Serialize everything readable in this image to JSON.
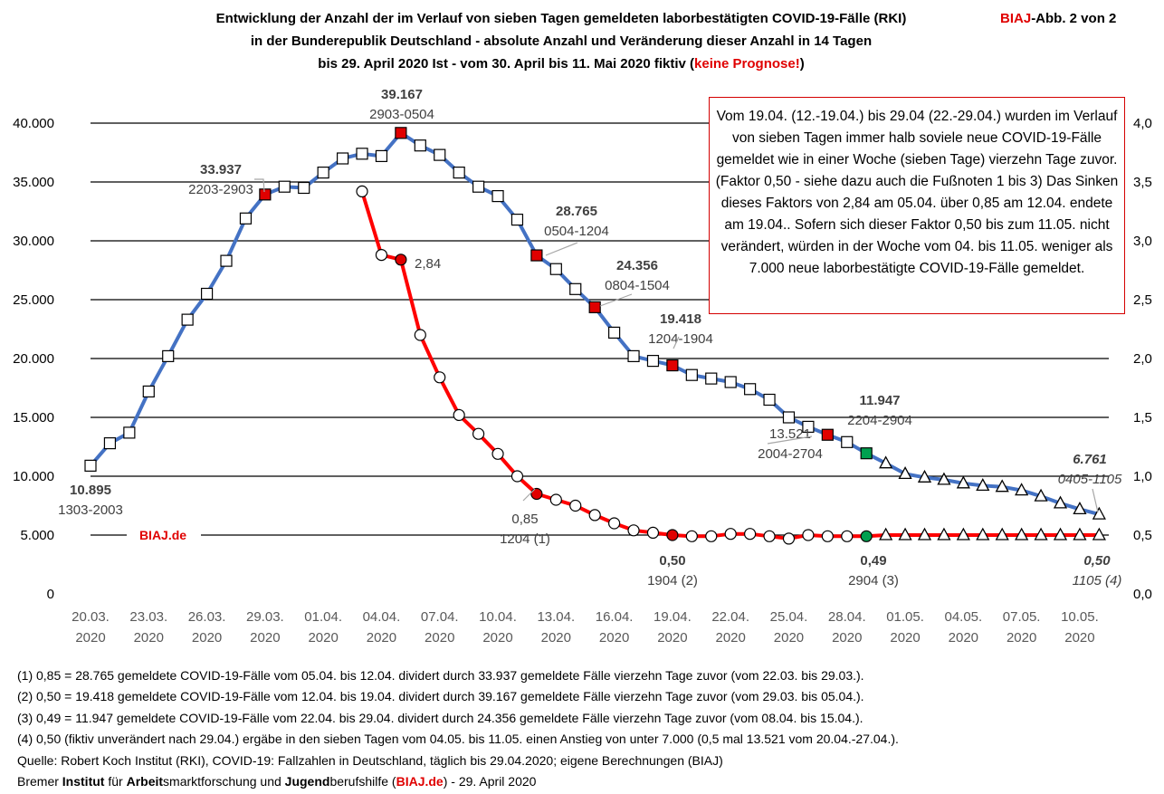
{
  "header": {
    "title_line1": "Entwicklung der Anzahl der im Verlauf von sieben Tagen gemeldeten laborbestätigten COVID-19-Fälle (RKI)",
    "title_line2": "in der Bunderepublik Deutschland - absolute Anzahl und Veränderung dieser Anzahl in 14 Tagen",
    "title_line3_a": "bis 29. April 2020 Ist - vom 30. April bis 11. Mai 2020 fiktiv (",
    "title_line3_red": "keine Prognose!",
    "title_line3_b": ")",
    "badge_red": "BIAJ",
    "badge_rest": "-Abb. 2 von 2"
  },
  "info_box": "Vom 19.04. (12.-19.04.) bis 29.04 (22.-29.04.) wurden im Verlauf von sieben Tagen immer halb soviele neue COVID-19-Fälle gemeldet wie in einer Woche (sieben Tage) vierzehn Tage zuvor. (Faktor 0,50 - siehe dazu auch die Fußnoten 1 bis 3) Das Sinken dieses Faktors von 2,84 am 05.04. über 0,85 am 12.04. endete am 19.04.. Sofern sich dieser Faktor 0,50 bis zum 11.05. nicht verändert, würden in der Woche vom 04. bis 11.05. weniger als 7.000 neue laborbestätigte COVID-19-Fälle gemeldet.",
  "footnotes": [
    "(1) 0,85 = 28.765 gemeldete COVID-19-Fälle vom 05.04. bis 12.04. dividert durch 33.937 gemeldete Fälle vierzehn Tage zuvor (vom 22.03. bis 29.03.).",
    "(2) 0,50 = 19.418 gemeldete COVID-19-Fälle vom 12.04. bis 19.04. dividert durch 39.167 gemeldete Fälle vierzehn Tage zuvor (vom 29.03. bis 05.04.).",
    "(3) 0,49 = 11.947 gemeldete COVID-19-Fälle vom 22.04. bis 29.04. dividert durch 24.356 gemeldete Fälle vierzehn Tage zuvor (vom 08.04. bis 15.04.).",
    "(4) 0,50 (fiktiv unverändert nach 29.04.) ergäbe in den sieben Tagen vom 04.05. bis 11.05. einen Anstieg von unter 7.000 (0,5  mal 13.521 vom 20.04.-27.04.).",
    "Quelle: Robert Koch Institut (RKI), COVID-19: Fallzahlen in Deutschland, täglich bis 29.04.2020; eigene Berechnungen (BIAJ)"
  ],
  "credit": {
    "p1": "Bremer ",
    "b1": "Institut",
    "p2": " für ",
    "b2": "Arbeit",
    "p3": "smarktforschung und ",
    "b3": "Jugend",
    "p4": "berufshilfe (",
    "red": "BIAJ.de",
    "p5": ") - 29. April 2020"
  },
  "chart_data": {
    "type": "line",
    "watermark": "BIAJ.de",
    "x_tick_labels": [
      [
        "20.03.",
        "2020"
      ],
      [
        "23.03.",
        "2020"
      ],
      [
        "26.03.",
        "2020"
      ],
      [
        "29.03.",
        "2020"
      ],
      [
        "01.04.",
        "2020"
      ],
      [
        "04.04.",
        "2020"
      ],
      [
        "07.04.",
        "2020"
      ],
      [
        "10.04.",
        "2020"
      ],
      [
        "13.04.",
        "2020"
      ],
      [
        "16.04.",
        "2020"
      ],
      [
        "19.04.",
        "2020"
      ],
      [
        "22.04.",
        "2020"
      ],
      [
        "25.04.",
        "2020"
      ],
      [
        "28.04.",
        "2020"
      ],
      [
        "01.05.",
        "2020"
      ],
      [
        "04.05.",
        "2020"
      ],
      [
        "07.05.",
        "2020"
      ],
      [
        "10.05.",
        "2020"
      ]
    ],
    "x_dates": [
      "20.03.",
      "21.03.",
      "22.03.",
      "23.03.",
      "24.03.",
      "25.03.",
      "26.03.",
      "27.03.",
      "28.03.",
      "29.03.",
      "30.03.",
      "31.03.",
      "01.04.",
      "02.04.",
      "03.04.",
      "04.04.",
      "05.04.",
      "06.04.",
      "07.04.",
      "08.04.",
      "09.04.",
      "10.04.",
      "11.04.",
      "12.04.",
      "13.04.",
      "14.04.",
      "15.04.",
      "16.04.",
      "17.04.",
      "18.04.",
      "19.04.",
      "20.04.",
      "21.04.",
      "22.04.",
      "23.04.",
      "24.04.",
      "25.04.",
      "26.04.",
      "27.04.",
      "28.04.",
      "29.04.",
      "30.04.",
      "01.05.",
      "02.05.",
      "03.05.",
      "04.05.",
      "05.05.",
      "06.05.",
      "07.05.",
      "08.05.",
      "09.05.",
      "10.05.",
      "11.05."
    ],
    "y_left": {
      "min": 0,
      "max": 40000,
      "ticks": [
        "0",
        "5.000",
        "10.000",
        "15.000",
        "20.000",
        "25.000",
        "30.000",
        "35.000",
        "40.000"
      ]
    },
    "y_right": {
      "min": 0,
      "max": 4,
      "ticks": [
        "0,0",
        "0,5",
        "1,0",
        "1,5",
        "2,0",
        "2,5",
        "3,0",
        "3,5",
        "4,0"
      ]
    },
    "grid": "horizontal",
    "series": [
      {
        "axis": "left",
        "color": "#4472c4",
        "marker": "square",
        "values": [
          10895,
          12800,
          13700,
          17200,
          20200,
          23300,
          25500,
          28300,
          31900,
          33937,
          34600,
          34500,
          35800,
          37000,
          37400,
          37200,
          39167,
          38100,
          37300,
          35800,
          34600,
          33800,
          31800,
          28765,
          27600,
          25900,
          24356,
          22200,
          20200,
          19800,
          19418,
          18600,
          18300,
          18000,
          17400,
          16500,
          15000,
          14200,
          13521,
          12900,
          11947,
          11100,
          10200,
          9900,
          9700,
          9400,
          9200,
          9100,
          8800,
          8300,
          7700,
          7200,
          6761
        ],
        "highlight_red": [
          "29.03.",
          "05.04.",
          "12.04.",
          "15.04.",
          "19.04.",
          "27.04."
        ],
        "highlight_green": [
          "29.04."
        ],
        "fictive_from": "30.04."
      },
      {
        "axis": "right",
        "color": "#ff0000",
        "marker": "circle",
        "values": [
          null,
          null,
          null,
          null,
          null,
          null,
          null,
          null,
          null,
          null,
          null,
          null,
          null,
          null,
          3.42,
          2.88,
          2.84,
          2.2,
          1.84,
          1.52,
          1.36,
          1.19,
          1.0,
          0.85,
          0.8,
          0.75,
          0.67,
          0.6,
          0.54,
          0.52,
          0.5,
          0.49,
          0.49,
          0.51,
          0.51,
          0.49,
          0.47,
          0.5,
          0.49,
          0.49,
          0.49,
          0.5,
          0.5,
          0.5,
          0.5,
          0.5,
          0.5,
          0.5,
          0.5,
          0.5,
          0.5,
          0.5,
          0.5
        ],
        "highlight_red": [
          "05.04.",
          "12.04.",
          "19.04."
        ],
        "highlight_green": [
          "29.04."
        ],
        "fictive_from": "30.04."
      }
    ],
    "annotations": [
      {
        "value": "10.895",
        "sub": "1303-2003"
      },
      {
        "value": "33.937",
        "sub": "2203-2903"
      },
      {
        "value": "39.167",
        "sub": "2903-0504"
      },
      {
        "value": "28.765",
        "sub": "0504-1204"
      },
      {
        "value": "24.356",
        "sub": "0804-1504"
      },
      {
        "value": "19.418",
        "sub": "1204-1904"
      },
      {
        "value": "11.947",
        "sub": "2204-2904"
      },
      {
        "value": "",
        "sub": "13.521",
        "sub2": "2004-2704"
      },
      {
        "value": "6.761",
        "sub": "0405-1105"
      },
      {
        "value": "2,84",
        "sub": ""
      },
      {
        "value": "0,85",
        "sub": "1204 (1)"
      },
      {
        "value": "0,50",
        "sub": "1904 (2)"
      },
      {
        "value": "0,49",
        "sub": "2904 (3)"
      },
      {
        "value": "0,50",
        "sub": "1105 (4)"
      }
    ]
  }
}
